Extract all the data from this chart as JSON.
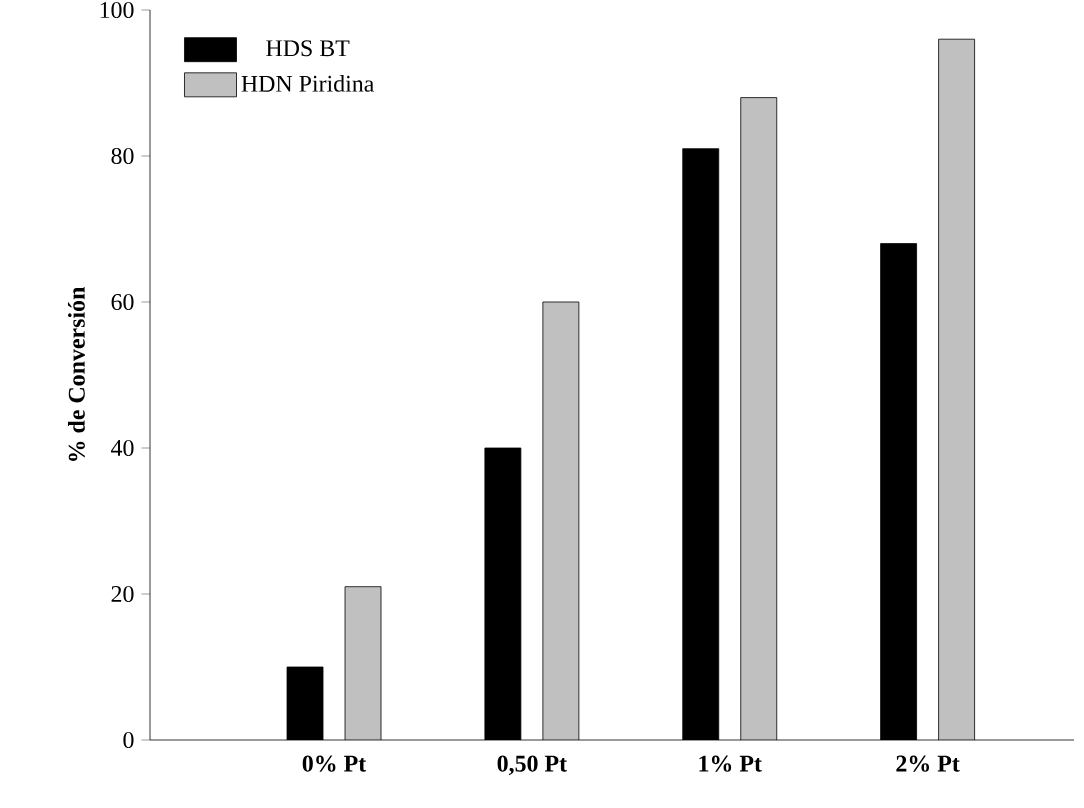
{
  "chart_data": {
    "type": "bar",
    "ylabel": "% de Conversión",
    "categories": [
      "0% Pt",
      "0,50 Pt",
      "1% Pt",
      "2% Pt"
    ],
    "series": [
      {
        "name": "HDS BT",
        "color": "#000000",
        "values": [
          10,
          40,
          81,
          68
        ]
      },
      {
        "name": "HDN Piridina",
        "color": "#c0c0c0",
        "values": [
          21,
          60,
          88,
          96
        ]
      }
    ],
    "ylim": [
      0,
      100
    ],
    "yticks": [
      0,
      20,
      40,
      60,
      80,
      100
    ],
    "legend": "top left"
  }
}
